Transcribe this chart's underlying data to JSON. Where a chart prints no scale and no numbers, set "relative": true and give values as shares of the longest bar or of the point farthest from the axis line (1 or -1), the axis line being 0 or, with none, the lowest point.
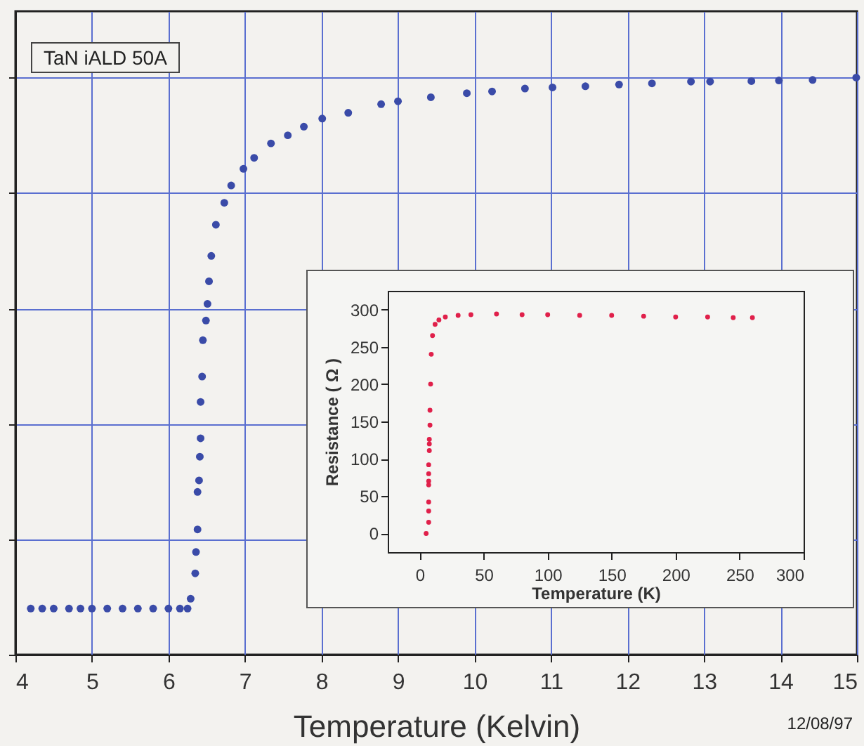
{
  "chart_data": [
    {
      "type": "scatter",
      "relative": true,
      "xlabel": "Temperature (Kelvin)",
      "xlim": [
        4,
        15
      ],
      "xticks": [
        4,
        5,
        6,
        7,
        8,
        9,
        10,
        11,
        12,
        13,
        14,
        15
      ],
      "grid": true,
      "marker": "circle",
      "annotations": [
        "TaN iALD  50A",
        "12/08/97"
      ],
      "series": [
        {
          "color": "#3a4ba8",
          "x": [
            4.2,
            4.35,
            4.5,
            4.7,
            4.85,
            5.0,
            5.2,
            5.4,
            5.6,
            5.8,
            6.0,
            6.15,
            6.25,
            6.29,
            6.35,
            6.36,
            6.38,
            6.38,
            6.4,
            6.41,
            6.42,
            6.42,
            6.44,
            6.45,
            6.49,
            6.51,
            6.53,
            6.56,
            6.62,
            6.73,
            6.82,
            6.98,
            7.12,
            7.34,
            7.56,
            7.77,
            8.01,
            8.35,
            8.78,
            9.0,
            9.43,
            9.9,
            10.23,
            10.66,
            11.02,
            11.45,
            11.89,
            12.32,
            12.83,
            13.08,
            13.62,
            13.98,
            14.42,
            14.99
          ],
          "values": [
            0.08,
            0.08,
            0.08,
            0.08,
            0.08,
            0.08,
            0.08,
            0.08,
            0.08,
            0.08,
            0.08,
            0.08,
            0.08,
            0.097,
            0.141,
            0.178,
            0.217,
            0.282,
            0.302,
            0.343,
            0.375,
            0.438,
            0.482,
            0.545,
            0.579,
            0.608,
            0.647,
            0.691,
            0.745,
            0.783,
            0.813,
            0.842,
            0.861,
            0.886,
            0.9,
            0.915,
            0.929,
            0.939,
            0.954,
            0.959,
            0.966,
            0.973,
            0.976,
            0.981,
            0.983,
            0.985,
            0.988,
            0.99,
            0.993,
            0.993,
            0.994,
            0.995,
            0.996,
            1
          ]
        }
      ]
    },
    {
      "type": "scatter",
      "xlabel": "Temperature (K)",
      "ylabel": "Resistance ( Ω )",
      "xlim": [
        -25,
        300
      ],
      "xticks": [
        0,
        50,
        100,
        150,
        200,
        250,
        300
      ],
      "ylim": [
        -25,
        325
      ],
      "yticks": [
        0,
        50,
        100,
        150,
        200,
        250,
        300
      ],
      "grid": false,
      "marker": "circle",
      "series": [
        {
          "color": "#e0204a",
          "x": [
            5,
            7,
            7,
            7,
            7,
            7,
            7,
            7,
            7.5,
            7.5,
            7.5,
            8,
            8,
            8.5,
            9,
            10,
            12,
            15,
            20,
            30,
            40,
            60,
            80,
            100,
            125,
            150,
            175,
            200,
            225,
            245,
            260
          ],
          "values": [
            0,
            15,
            30,
            42,
            65,
            70,
            80,
            92,
            111,
            120,
            126,
            145,
            165,
            200,
            240,
            265,
            280,
            286,
            290,
            292,
            293,
            294,
            293,
            293,
            292,
            292,
            291,
            290,
            290,
            289,
            289
          ]
        }
      ]
    }
  ]
}
